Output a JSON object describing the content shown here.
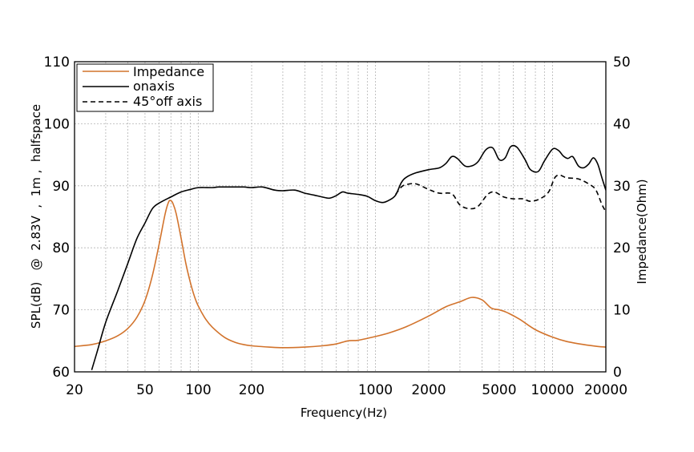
{
  "chart_data": {
    "type": "line",
    "xscale": "log",
    "xlim": [
      20,
      20000
    ],
    "ylim_left": [
      60,
      110
    ],
    "ylim_right": [
      0,
      50
    ],
    "xlabel": "Frequency(Hz)",
    "ylabel_left": "SPL(dB)   @  2.83V  ,  1m ,  halfspace",
    "ylabel_right": "Impedance(Ohm)",
    "x_ticks": [
      20,
      50,
      100,
      200,
      1000,
      2000,
      5000,
      10000,
      20000
    ],
    "x_tick_labels": [
      "20",
      "50",
      "100",
      "200",
      "1000",
      "2000",
      "5000",
      "10000",
      "20000"
    ],
    "y_ticks_left": [
      60,
      70,
      80,
      90,
      100,
      110
    ],
    "y_tick_labels_left": [
      "60",
      "70",
      "80",
      "90",
      "100",
      "110"
    ],
    "y_ticks_right": [
      0,
      10,
      20,
      30,
      40,
      50
    ],
    "y_tick_labels_right": [
      "0",
      "10",
      "20",
      "30",
      "40",
      "50"
    ],
    "grid": true,
    "legend_position": "top-left",
    "series": [
      {
        "name": "Impedance",
        "axis": "right",
        "color": "#d2732c",
        "style": "solid",
        "points": [
          [
            20,
            4.1
          ],
          [
            25,
            4.4
          ],
          [
            30,
            5.0
          ],
          [
            35,
            5.8
          ],
          [
            40,
            7.0
          ],
          [
            45,
            8.8
          ],
          [
            50,
            11.5
          ],
          [
            55,
            15.5
          ],
          [
            60,
            20.5
          ],
          [
            65,
            25.5
          ],
          [
            68,
            27.4
          ],
          [
            70,
            27.6
          ],
          [
            72,
            27.1
          ],
          [
            75,
            25.5
          ],
          [
            80,
            21.5
          ],
          [
            85,
            17.5
          ],
          [
            90,
            14.5
          ],
          [
            95,
            12.2
          ],
          [
            100,
            10.6
          ],
          [
            110,
            8.5
          ],
          [
            120,
            7.2
          ],
          [
            140,
            5.6
          ],
          [
            160,
            4.8
          ],
          [
            180,
            4.4
          ],
          [
            200,
            4.2
          ],
          [
            250,
            4.0
          ],
          [
            300,
            3.9
          ],
          [
            400,
            4.0
          ],
          [
            500,
            4.2
          ],
          [
            600,
            4.5
          ],
          [
            700,
            5.0
          ],
          [
            800,
            5.1
          ],
          [
            1000,
            5.7
          ],
          [
            1200,
            6.3
          ],
          [
            1500,
            7.3
          ],
          [
            2000,
            9.0
          ],
          [
            2500,
            10.5
          ],
          [
            3000,
            11.3
          ],
          [
            3500,
            12.0
          ],
          [
            4000,
            11.6
          ],
          [
            4500,
            10.3
          ],
          [
            5000,
            10.0
          ],
          [
            5500,
            9.6
          ],
          [
            6500,
            8.5
          ],
          [
            8000,
            6.8
          ],
          [
            10000,
            5.6
          ],
          [
            12000,
            4.9
          ],
          [
            15000,
            4.4
          ],
          [
            18000,
            4.1
          ],
          [
            20000,
            4.0
          ]
        ]
      },
      {
        "name": "onaxis",
        "axis": "left",
        "color": "#000000",
        "style": "solid",
        "points": [
          [
            25,
            60.3
          ],
          [
            27,
            63.5
          ],
          [
            30,
            68.0
          ],
          [
            35,
            73.0
          ],
          [
            40,
            77.5
          ],
          [
            45,
            81.5
          ],
          [
            50,
            84.0
          ],
          [
            55,
            86.3
          ],
          [
            60,
            87.2
          ],
          [
            70,
            88.2
          ],
          [
            80,
            89.0
          ],
          [
            90,
            89.4
          ],
          [
            100,
            89.7
          ],
          [
            120,
            89.7
          ],
          [
            130,
            89.8
          ],
          [
            150,
            89.8
          ],
          [
            180,
            89.8
          ],
          [
            200,
            89.7
          ],
          [
            230,
            89.8
          ],
          [
            270,
            89.3
          ],
          [
            300,
            89.2
          ],
          [
            350,
            89.3
          ],
          [
            400,
            88.8
          ],
          [
            450,
            88.5
          ],
          [
            500,
            88.2
          ],
          [
            550,
            88.0
          ],
          [
            600,
            88.4
          ],
          [
            650,
            89.0
          ],
          [
            700,
            88.8
          ],
          [
            800,
            88.6
          ],
          [
            900,
            88.3
          ],
          [
            1000,
            87.6
          ],
          [
            1100,
            87.3
          ],
          [
            1200,
            87.7
          ],
          [
            1300,
            88.5
          ],
          [
            1400,
            90.5
          ],
          [
            1500,
            91.4
          ],
          [
            1700,
            92.1
          ],
          [
            2000,
            92.6
          ],
          [
            2300,
            92.9
          ],
          [
            2500,
            93.6
          ],
          [
            2700,
            94.7
          ],
          [
            2900,
            94.4
          ],
          [
            3200,
            93.2
          ],
          [
            3500,
            93.2
          ],
          [
            3800,
            93.9
          ],
          [
            4200,
            95.8
          ],
          [
            4600,
            96.1
          ],
          [
            5000,
            94.2
          ],
          [
            5400,
            94.5
          ],
          [
            5800,
            96.3
          ],
          [
            6300,
            96.2
          ],
          [
            7000,
            94.2
          ],
          [
            7500,
            92.6
          ],
          [
            8300,
            92.3
          ],
          [
            9000,
            94.0
          ],
          [
            10000,
            95.9
          ],
          [
            10800,
            95.7
          ],
          [
            11500,
            94.8
          ],
          [
            12200,
            94.4
          ],
          [
            13000,
            94.7
          ],
          [
            14000,
            93.2
          ],
          [
            15000,
            92.9
          ],
          [
            16000,
            93.5
          ],
          [
            17000,
            94.5
          ],
          [
            18000,
            93.5
          ],
          [
            19000,
            91.3
          ],
          [
            20000,
            89.3
          ]
        ]
      },
      {
        "name": "45°off axis",
        "axis": "left",
        "color": "#000000",
        "style": "dashed",
        "points": [
          [
            1300,
            88.6
          ],
          [
            1400,
            89.8
          ],
          [
            1500,
            90.2
          ],
          [
            1700,
            90.3
          ],
          [
            2000,
            89.4
          ],
          [
            2300,
            88.8
          ],
          [
            2700,
            88.7
          ],
          [
            3000,
            86.9
          ],
          [
            3400,
            86.3
          ],
          [
            3800,
            86.7
          ],
          [
            4300,
            88.6
          ],
          [
            4700,
            89.0
          ],
          [
            5300,
            88.2
          ],
          [
            6000,
            87.9
          ],
          [
            6800,
            87.9
          ],
          [
            7500,
            87.5
          ],
          [
            8500,
            87.9
          ],
          [
            9500,
            89.0
          ],
          [
            10300,
            91.3
          ],
          [
            11000,
            91.7
          ],
          [
            12000,
            91.3
          ],
          [
            14000,
            91.1
          ],
          [
            16000,
            90.3
          ],
          [
            17500,
            89.4
          ],
          [
            19000,
            87.0
          ],
          [
            20000,
            85.8
          ]
        ]
      }
    ]
  }
}
